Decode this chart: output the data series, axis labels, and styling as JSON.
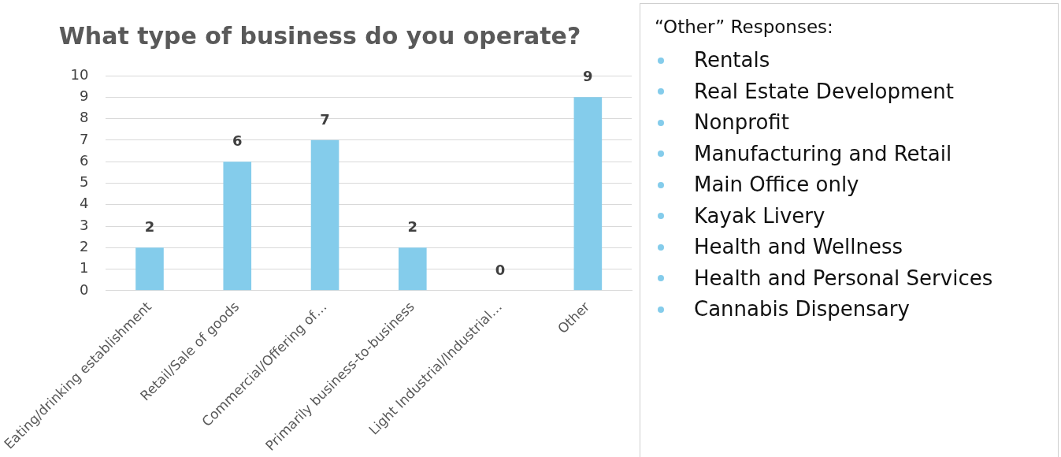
{
  "chart_data": [
    {
      "type": "bar",
      "title": "What type of business do you operate?",
      "categories": [
        "Eating/drinking establishment",
        "Retail/Sale of goods",
        "Commercial/Offering of…",
        "Primarily business-to-business",
        "Light Industrial/Industrial…",
        "Other"
      ],
      "values": [
        2,
        6,
        7,
        2,
        0,
        9
      ],
      "color": "#84cceb",
      "ylim": [
        0,
        10
      ],
      "yticks": [
        0,
        1,
        2,
        3,
        4,
        5,
        6,
        7,
        8,
        9,
        10
      ],
      "grid": "y",
      "data_labels": true
    },
    {
      "type": "other",
      "title": "“Other” Responses:",
      "annotations": [
        "Rentals",
        "Real Estate Development",
        "Nonprofit",
        "Manufacturing and Retail",
        "Main Office only",
        "Kayak Livery",
        "Health and Wellness",
        "Health and Personal Services",
        "Cannabis Dispensary"
      ]
    }
  ]
}
